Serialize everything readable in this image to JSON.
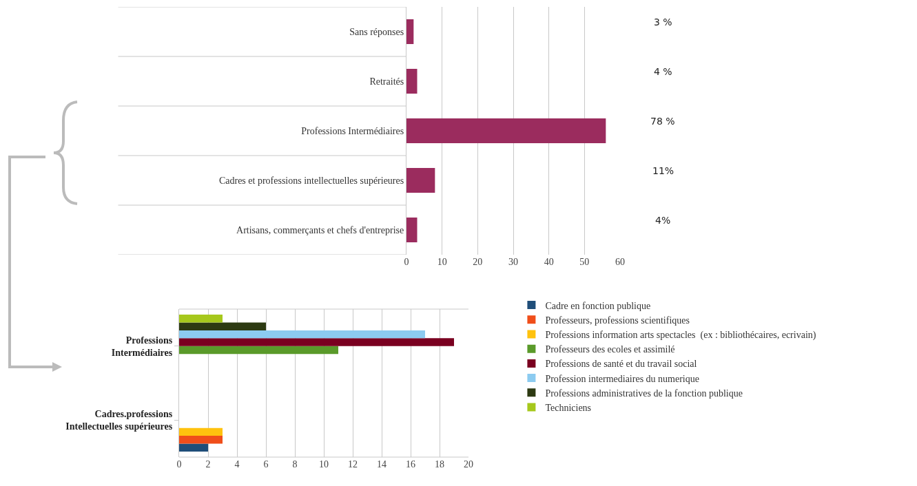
{
  "chart_data": [
    {
      "type": "bar",
      "orientation": "horizontal",
      "categories": [
        "Sans réponses",
        "Retraités",
        "Professions Intermédiaires",
        "Cadres et professions intellectuelles supérieures",
        "Artisans, commerçants et chefs d'entreprise"
      ],
      "values": [
        2,
        3,
        56,
        8,
        3
      ],
      "color": "#9b2c5e",
      "annotations": [
        "3 %",
        "4 %",
        "78 %",
        "11%",
        "4%"
      ],
      "xlim": [
        0,
        60
      ],
      "xticks": [
        0,
        10,
        20,
        30,
        40,
        50,
        60
      ],
      "grid": "x"
    },
    {
      "type": "bar",
      "orientation": "horizontal",
      "categories": [
        "Professions Intermédiaires",
        "Cadres.professions Intellectuelles supérieures"
      ],
      "xlim": [
        0,
        20
      ],
      "xticks": [
        0,
        2,
        4,
        6,
        8,
        10,
        12,
        14,
        16,
        18,
        20
      ],
      "grid": "x",
      "legend": "right",
      "series": [
        {
          "name": "Cadre en fonction publique",
          "color": "#1f4e79",
          "values": [
            null,
            2
          ]
        },
        {
          "name": "Professeurs, professions scientifiques",
          "color": "#f04e1a",
          "values": [
            null,
            3
          ]
        },
        {
          "name": "Professions information arts spectacles  (ex : bibliothécaires, ecrivain)",
          "color": "#ffc20e",
          "values": [
            null,
            3
          ]
        },
        {
          "name": "Professeurs des ecoles et assimilé",
          "color": "#5a9a2a",
          "values": [
            11,
            null
          ]
        },
        {
          "name": "Professions de santé et du travail social",
          "color": "#7a0020",
          "values": [
            19,
            null
          ]
        },
        {
          "name": "Profession intermediaires du numerique",
          "color": "#8ccbf0",
          "values": [
            17,
            null
          ]
        },
        {
          "name": "Professions administratives de la fonction publique",
          "color": "#2d3a12",
          "values": [
            6,
            null
          ]
        },
        {
          "name": "Techniciens",
          "color": "#a6c81c",
          "values": [
            3,
            null
          ]
        }
      ]
    }
  ]
}
